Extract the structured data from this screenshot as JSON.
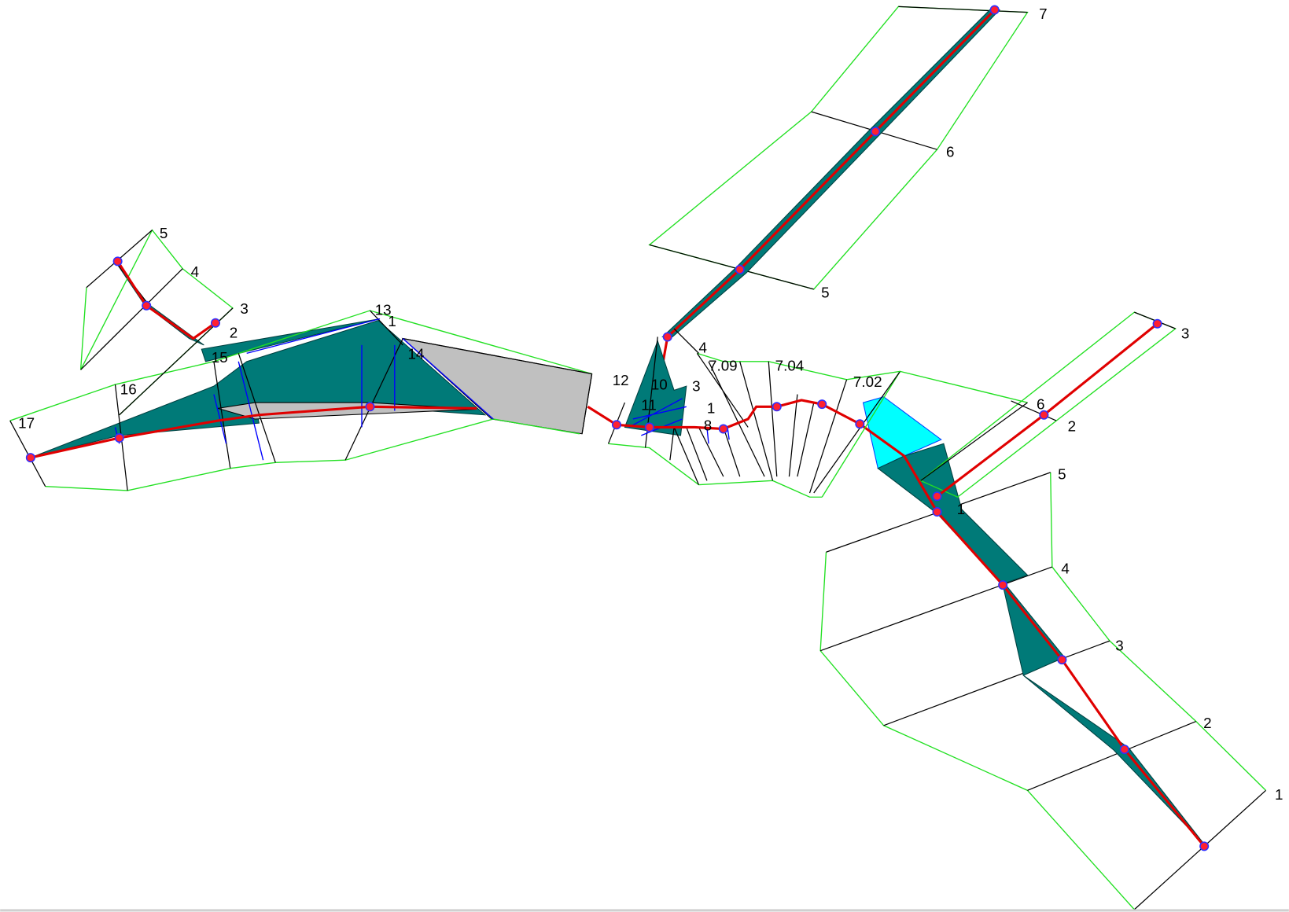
{
  "labels": [
    "7",
    "6",
    "5",
    "4",
    "7.09",
    "7.04",
    "7.02",
    "3",
    "1",
    "12",
    "10",
    "11",
    "8",
    "3",
    "6",
    "2",
    "5",
    "4",
    "3",
    "2",
    "1",
    "1",
    "13",
    "1",
    "14",
    "15",
    "2",
    "3",
    "4",
    "5",
    "16",
    "17"
  ]
}
